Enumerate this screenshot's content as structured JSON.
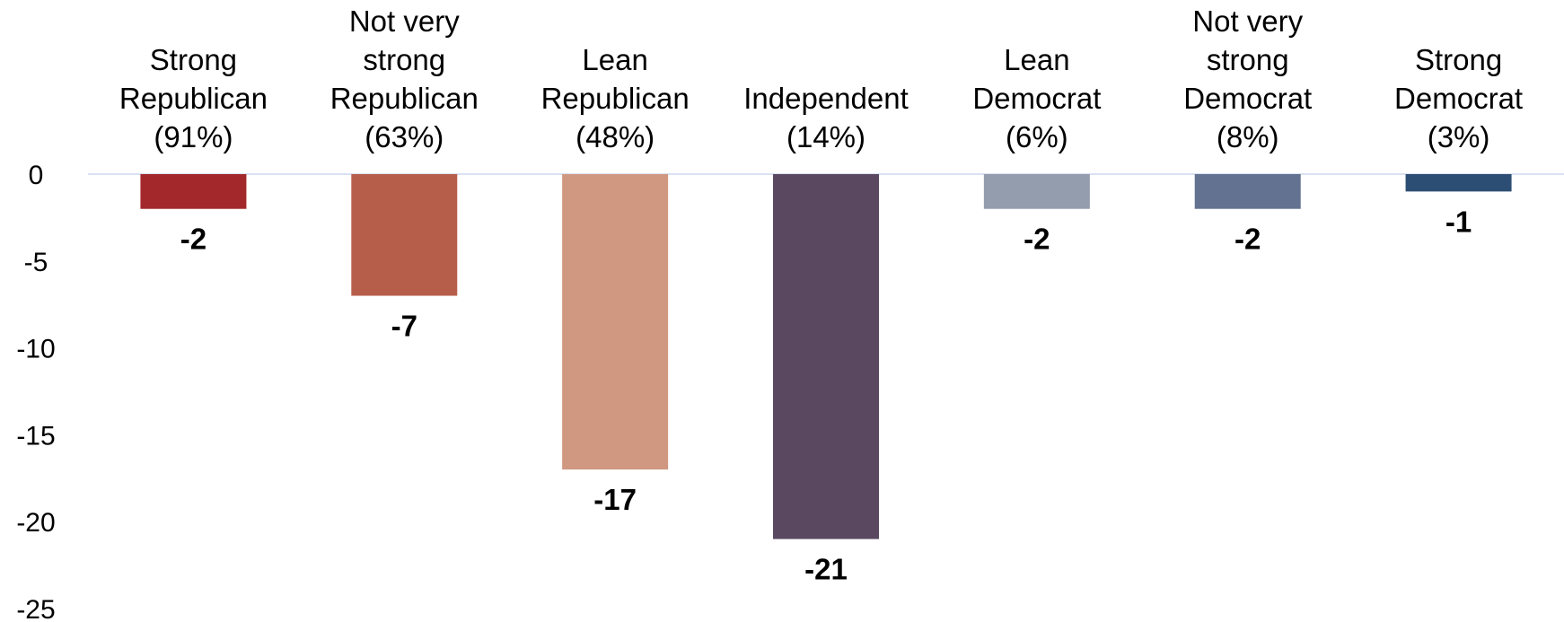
{
  "chart_data": {
    "type": "bar",
    "categories": [
      [
        "Strong",
        "Republican",
        "(91%)"
      ],
      [
        "Not very",
        "strong",
        "Republican",
        "(63%)"
      ],
      [
        "Lean",
        "Republican",
        "(48%)"
      ],
      [
        "Independent",
        "(14%)"
      ],
      [
        "Lean",
        "Democrat",
        "(6%)"
      ],
      [
        "Not very",
        "strong",
        "Democrat",
        "(8%)"
      ],
      [
        "Strong",
        "Democrat",
        "(3%)"
      ]
    ],
    "values": [
      -2,
      -7,
      -17,
      -21,
      -2,
      -2,
      -1
    ],
    "data_labels": [
      "-2",
      "-7",
      "-17",
      "-21",
      "-2",
      "-2",
      "-1"
    ],
    "colors": [
      "#A3282B",
      "#B75E4B",
      "#D09880",
      "#5A4861",
      "#949DAE",
      "#627290",
      "#2D4E74"
    ],
    "ylim": [
      -25,
      0
    ],
    "yticks": [
      0,
      -5,
      -10,
      -15,
      -20,
      -25
    ],
    "ytick_labels": [
      "0",
      "-5",
      "-10",
      "-15",
      "-20",
      "-25"
    ],
    "zero_line_color": "#D9E1F2",
    "grid": false,
    "title": "",
    "xlabel": "",
    "ylabel": ""
  }
}
